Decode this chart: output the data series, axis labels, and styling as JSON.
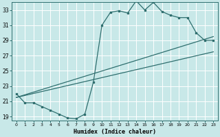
{
  "xlabel": "Humidex (Indice chaleur)",
  "bg_color": "#c8e8e8",
  "grid_color": "#b0d8d8",
  "line_color": "#2e6e6e",
  "xlim": [
    -0.5,
    23.5
  ],
  "ylim": [
    18.5,
    34.0
  ],
  "xticks": [
    0,
    1,
    2,
    3,
    4,
    5,
    6,
    7,
    8,
    9,
    10,
    11,
    12,
    13,
    14,
    15,
    16,
    17,
    18,
    19,
    20,
    21,
    22,
    23
  ],
  "yticks": [
    19,
    21,
    23,
    25,
    27,
    29,
    31,
    33
  ],
  "curve_x": [
    0,
    1,
    2,
    3,
    4,
    5,
    6,
    7,
    8,
    9,
    10,
    11,
    12,
    13,
    14,
    15,
    16,
    17,
    18,
    19,
    20,
    21,
    22,
    23
  ],
  "curve_y": [
    22.0,
    20.8,
    20.8,
    20.3,
    19.8,
    19.3,
    18.8,
    18.7,
    19.3,
    23.5,
    31.0,
    32.7,
    32.9,
    32.6,
    34.2,
    33.0,
    34.0,
    32.8,
    32.3,
    32.0,
    32.0,
    30.0,
    29.0,
    29.0
  ],
  "line1_x": [
    0,
    23
  ],
  "line1_y": [
    21.5,
    29.5
  ],
  "line2_x": [
    0,
    23
  ],
  "line2_y": [
    21.5,
    27.5
  ],
  "line3_x": [
    0,
    23
  ],
  "line3_y": [
    21.5,
    29.0
  ]
}
